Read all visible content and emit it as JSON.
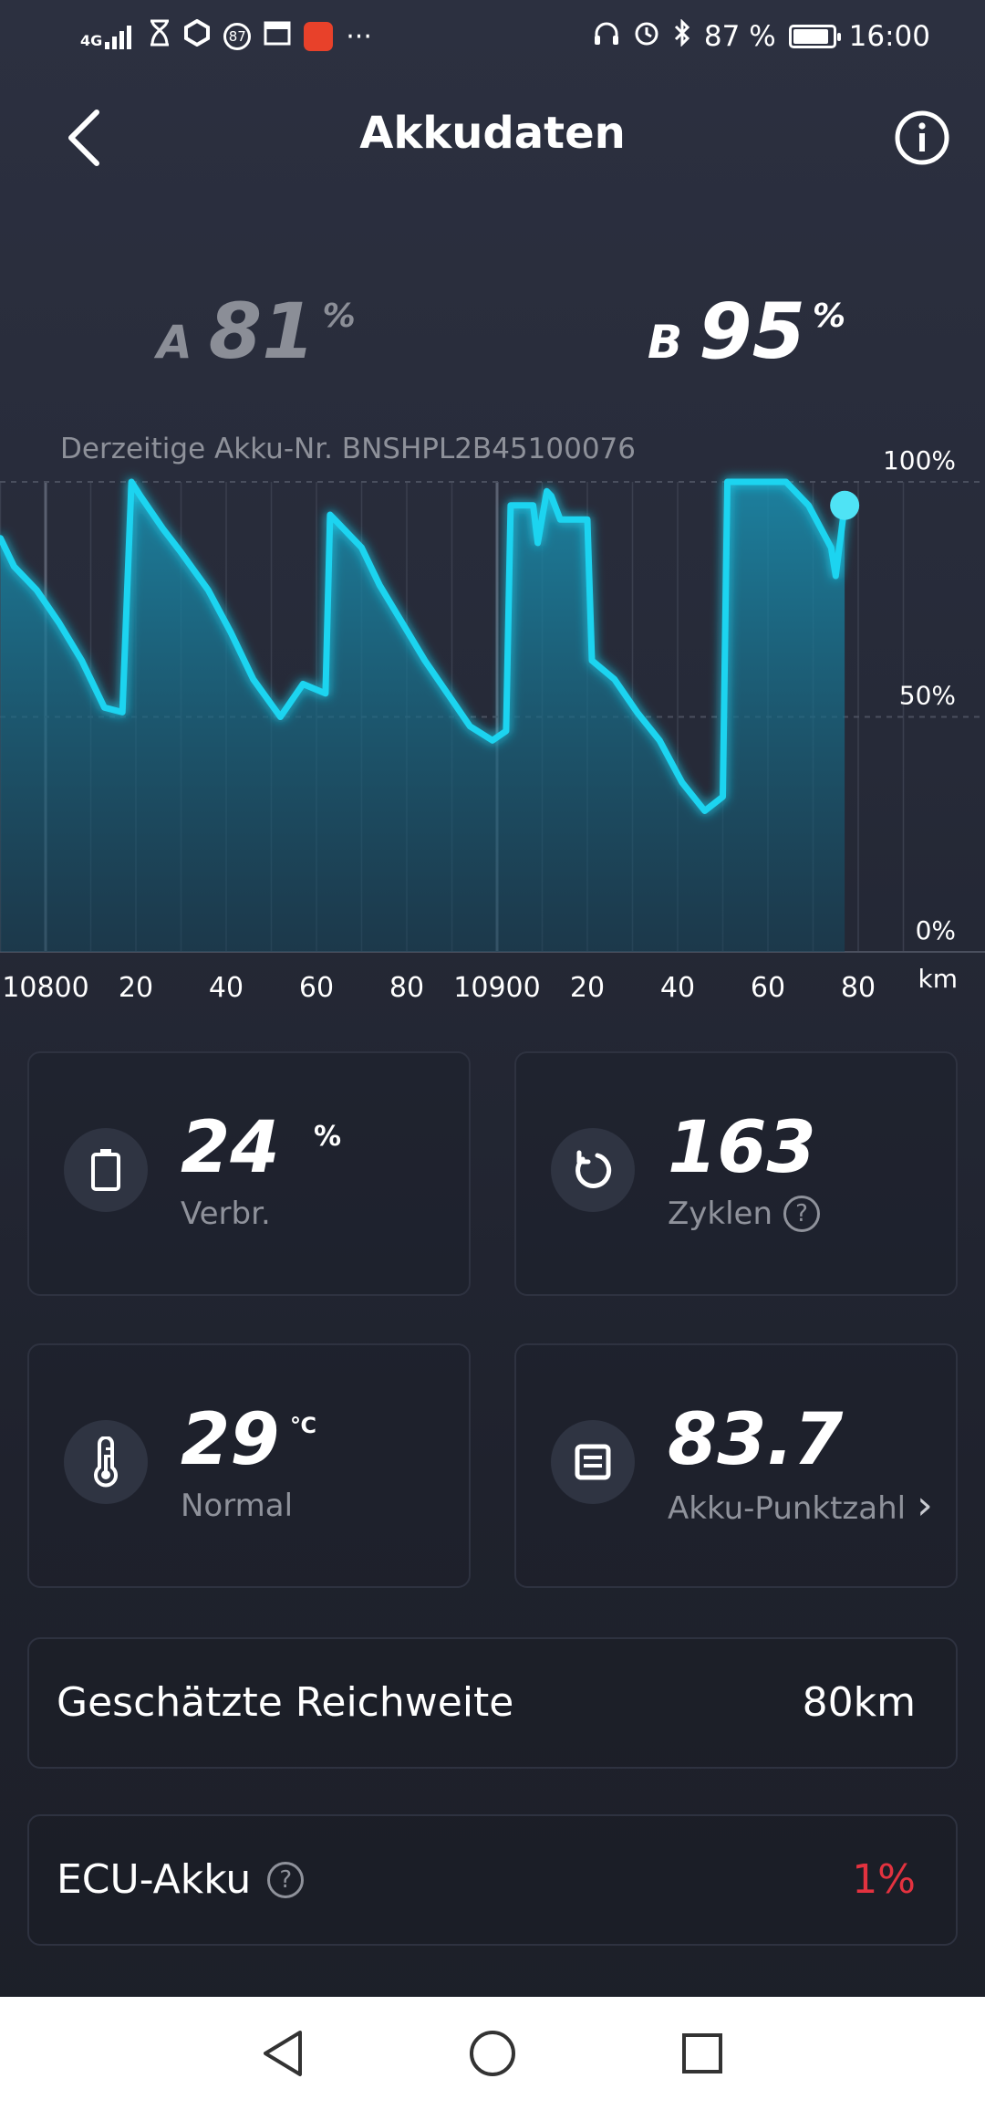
{
  "status_bar": {
    "network": "4G",
    "notification_badge": "87",
    "more": "···",
    "battery_percent": "87 %",
    "battery_level": 0.87,
    "time": "16:00"
  },
  "header": {
    "title": "Akkudaten"
  },
  "batteries": {
    "a": {
      "letter": "A",
      "value": "81",
      "unit": "%"
    },
    "b": {
      "letter": "B",
      "value": "95",
      "unit": "%"
    }
  },
  "akku_nr": "Derzeitige Akku-Nr. BNSHPL2B45100076",
  "chart_data": {
    "type": "area",
    "x_unit": "km",
    "x_tick_labels": [
      "10800",
      "20",
      "40",
      "60",
      "80",
      "10900",
      "20",
      "40",
      "60",
      "80"
    ],
    "x_tick_values": [
      10800,
      10820,
      10840,
      10860,
      10880,
      10900,
      10920,
      10940,
      10960,
      10980
    ],
    "y_tick_labels": [
      "100%",
      "50%",
      "0%"
    ],
    "y_tick_values": [
      100,
      50,
      0
    ],
    "ylim": [
      0,
      100
    ],
    "xlim": [
      10790,
      10990
    ],
    "grid": true,
    "color": "#1fd4f0",
    "series": [
      {
        "x": [
          10790,
          10793,
          10798,
          10803,
          10808,
          10813,
          10817,
          10819,
          10821,
          10826,
          10830,
          10836,
          10841,
          10846,
          10852,
          10857,
          10862,
          10863,
          10865,
          10870,
          10874,
          10879,
          10884,
          10889,
          10894,
          10899,
          10902,
          10903,
          10908,
          10909,
          10911,
          10912,
          10914,
          10915,
          10917,
          10920,
          10921,
          10926,
          10931,
          10936,
          10941,
          10946,
          10950,
          10951,
          10955,
          10960,
          10964,
          10969,
          10974,
          10975,
          10977
        ],
        "y": [
          88,
          82,
          77,
          70,
          62,
          52,
          51,
          100,
          97,
          90,
          85,
          77,
          68,
          58,
          50,
          57,
          55,
          93,
          91,
          86,
          78,
          70,
          62,
          55,
          48,
          45,
          47,
          95,
          95,
          87,
          98,
          97,
          92,
          92,
          92,
          92,
          62,
          58,
          51,
          45,
          36,
          30,
          33,
          100,
          100,
          100,
          100,
          95,
          86,
          80,
          95
        ]
      }
    ],
    "end_marker_value": 95
  },
  "cards": {
    "consumption": {
      "value": "24",
      "unit": "%",
      "label": "Verbr."
    },
    "cycles": {
      "value": "163",
      "label": "Zyklen",
      "help": "?"
    },
    "temperature": {
      "value": "29",
      "unit": "℃",
      "label": "Normal"
    },
    "score": {
      "value": "83.7",
      "label": "Akku-Punktzahl",
      "arrow": "›"
    }
  },
  "rows": {
    "range": {
      "label": "Geschätzte Reichweite",
      "value": "80km"
    },
    "ecu": {
      "label": "ECU-Akku",
      "help": "?",
      "value": "1%",
      "value_color": "#e3323f"
    }
  }
}
